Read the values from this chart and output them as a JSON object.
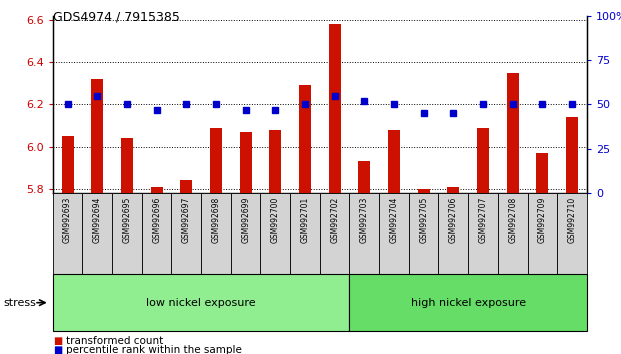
{
  "title": "GDS4974 / 7915385",
  "samples": [
    "GSM992693",
    "GSM992694",
    "GSM992695",
    "GSM992696",
    "GSM992697",
    "GSM992698",
    "GSM992699",
    "GSM992700",
    "GSM992701",
    "GSM992702",
    "GSM992703",
    "GSM992704",
    "GSM992705",
    "GSM992706",
    "GSM992707",
    "GSM992708",
    "GSM992709",
    "GSM992710"
  ],
  "transformed_count": [
    6.05,
    6.32,
    6.04,
    5.81,
    5.84,
    6.09,
    6.07,
    6.08,
    6.29,
    6.58,
    5.93,
    6.08,
    5.8,
    5.81,
    6.09,
    6.35,
    5.97,
    6.14
  ],
  "percentile_rank": [
    50,
    55,
    50,
    47,
    50,
    50,
    47,
    47,
    50,
    55,
    52,
    50,
    45,
    45,
    50,
    50,
    50,
    50
  ],
  "group_labels": [
    "low nickel exposure",
    "high nickel exposure"
  ],
  "group_sizes": [
    10,
    8
  ],
  "group_colors": [
    "#90ee90",
    "#66dd66"
  ],
  "bar_color": "#cc1100",
  "dot_color": "#0000cc",
  "ylim_left": [
    5.78,
    6.62
  ],
  "ylim_right": [
    0,
    100
  ],
  "yticks_left": [
    5.8,
    6.0,
    6.2,
    6.4,
    6.6
  ],
  "yticks_right": [
    0,
    25,
    50,
    75,
    100
  ],
  "background_color": "#ffffff",
  "plot_bg": "#ffffff",
  "tick_label_color_left": "#cc0000",
  "tick_label_color_right": "#0000cc",
  "stress_label": "stress",
  "legend_items": [
    "transformed count",
    "percentile rank within the sample"
  ],
  "legend_colors": [
    "#cc1100",
    "#0000cc"
  ],
  "bar_width": 0.4
}
